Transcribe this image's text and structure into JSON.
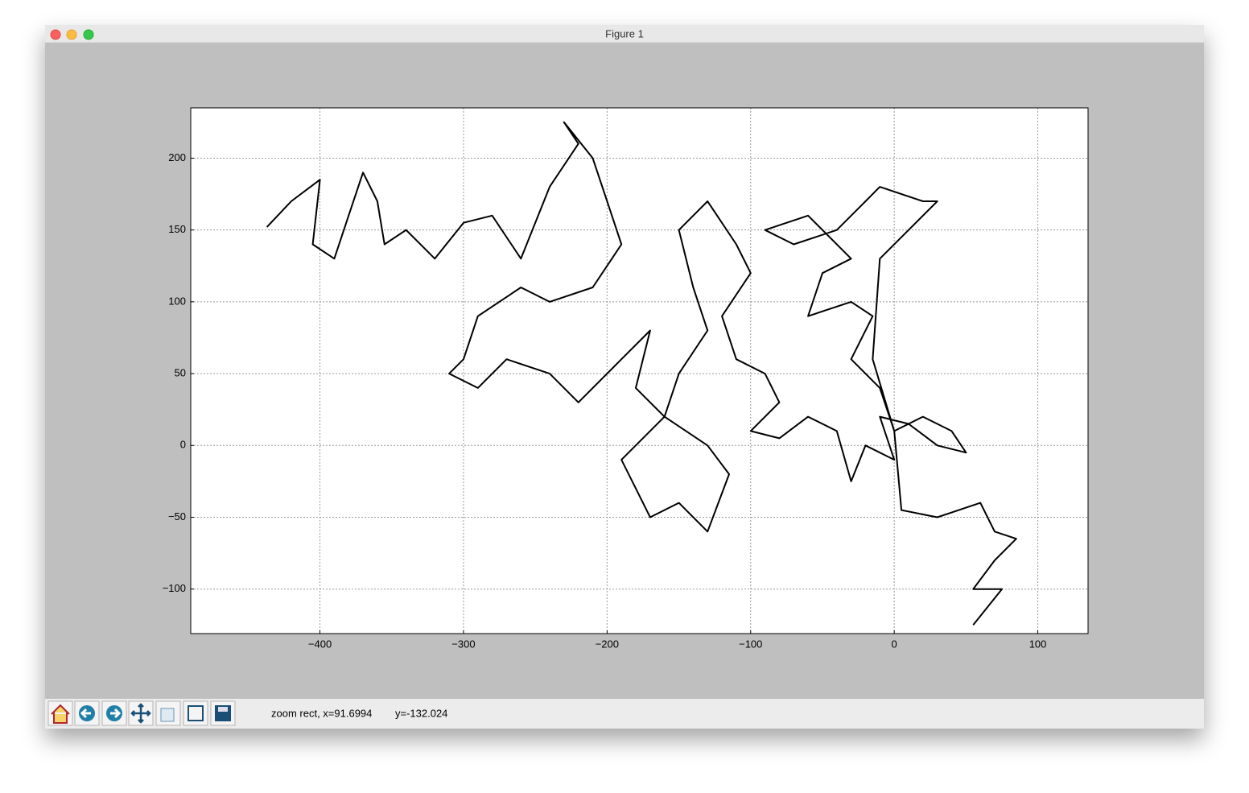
{
  "window": {
    "title": "Figure 1"
  },
  "toolbar": {
    "status": [
      "zoom rect, x=91.6994",
      "y=-132.024"
    ]
  },
  "chart_data": {
    "type": "line",
    "color": "#000000",
    "grid": true,
    "x": [
      -437,
      -420,
      -400,
      -405,
      -390,
      -380,
      -370,
      -360,
      -355,
      -340,
      -320,
      -300,
      -280,
      -260,
      -240,
      -220,
      -230,
      -210,
      -200,
      -190,
      -210,
      -240,
      -260,
      -290,
      -300,
      -310,
      -290,
      -270,
      -240,
      -220,
      -190,
      -170,
      -180,
      -160,
      -190,
      -170,
      -150,
      -130,
      -115,
      -130,
      -160,
      -150,
      -130,
      -140,
      -150,
      -130,
      -110,
      -100,
      -120,
      -110,
      -90,
      -80,
      -100,
      -80,
      -60,
      -40,
      -30,
      -20,
      0,
      -10,
      10,
      30,
      50,
      40,
      20,
      0,
      -10,
      -30,
      -15,
      -30,
      -60,
      -50,
      -30,
      -60,
      -90,
      -70,
      -40,
      -20,
      -10,
      20,
      30,
      10,
      -10,
      -15,
      0,
      5,
      30,
      60,
      70,
      85,
      70,
      55,
      75,
      55
    ],
    "values": [
      152,
      170,
      185,
      140,
      130,
      160,
      190,
      170,
      140,
      150,
      130,
      155,
      160,
      130,
      180,
      210,
      225,
      200,
      170,
      140,
      110,
      100,
      110,
      90,
      60,
      50,
      40,
      60,
      50,
      30,
      60,
      80,
      40,
      20,
      -10,
      -50,
      -40,
      -60,
      -20,
      0,
      20,
      50,
      80,
      110,
      150,
      170,
      140,
      120,
      90,
      60,
      50,
      30,
      10,
      5,
      20,
      10,
      -25,
      0,
      -10,
      20,
      15,
      0,
      -5,
      10,
      20,
      10,
      40,
      60,
      90,
      100,
      90,
      120,
      130,
      160,
      150,
      140,
      150,
      170,
      180,
      170,
      170,
      150,
      130,
      60,
      10,
      -45,
      -50,
      -40,
      -60,
      -65,
      -80,
      -100,
      -100,
      -125
    ],
    "xlim": [
      -490,
      135
    ],
    "ylim": [
      -131,
      235
    ],
    "xticks": [
      {
        "value": -400,
        "label": "−400"
      },
      {
        "value": -300,
        "label": "−300"
      },
      {
        "value": -200,
        "label": "−200"
      },
      {
        "value": -100,
        "label": "−100"
      },
      0,
      100
    ],
    "yticks": [
      {
        "value": -100,
        "label": "−100"
      },
      {
        "value": -50,
        "label": "−50"
      },
      0,
      50,
      100,
      150,
      200
    ]
  }
}
